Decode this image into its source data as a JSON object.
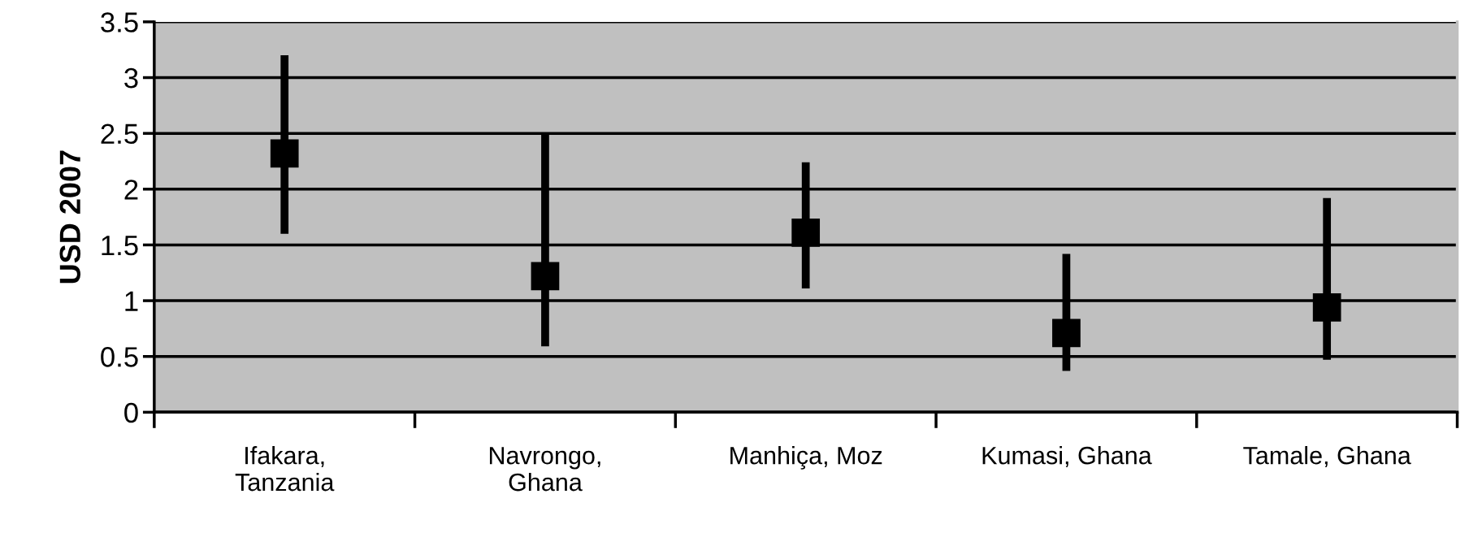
{
  "chart_data": {
    "type": "scatter",
    "ylabel": "USD 2007",
    "categories": [
      "Ifakara,\nTanzania",
      "Navrongo,\nGhana",
      "Manhiça, Moz",
      "Kumasi, Ghana",
      "Tamale, Ghana"
    ],
    "series": [
      {
        "color": "#000000",
        "values": [
          2.32,
          1.22,
          1.61,
          0.71,
          0.94
        ],
        "errors": [
          [
            1.6,
            3.2
          ],
          [
            0.59,
            2.5
          ],
          [
            1.11,
            2.24
          ],
          [
            0.37,
            1.42
          ],
          [
            0.47,
            1.92
          ]
        ]
      }
    ],
    "marker": "square",
    "ylim": [
      0,
      3.5
    ],
    "yticks": [
      0,
      0.5,
      1,
      1.5,
      2,
      2.5,
      3,
      3.5
    ],
    "grid": "y",
    "legend": false
  }
}
